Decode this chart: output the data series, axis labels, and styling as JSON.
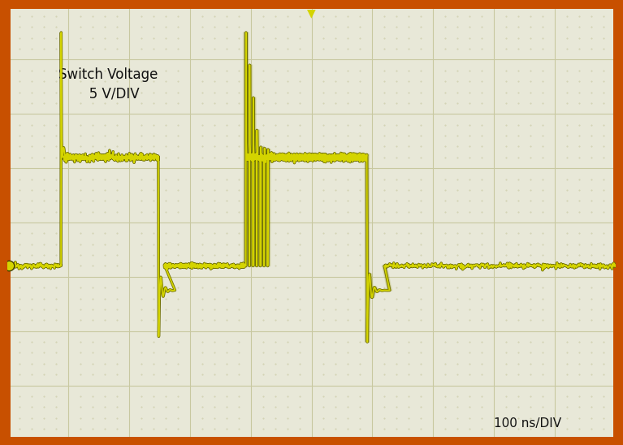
{
  "bg_color": "#e8e8d8",
  "border_color": "#c85000",
  "grid_color": "#c8c8a0",
  "wave_color": "#d4d400",
  "wave_dark": "#707000",
  "text_color": "#111111",
  "label_text": "Switch Voltage\n   5 V/DIV",
  "time_label": "100 ns/DIV",
  "n_hdiv": 10,
  "n_vdiv": 8,
  "xmin": 0,
  "xmax": 1000,
  "ymin": 0,
  "ymax": 8,
  "zero_y": 3.2,
  "high_y": 5.2,
  "low_y": 2.75,
  "spike_up_max": 7.5,
  "spike_down_min": 2.2,
  "noise_amp": 0.055,
  "ringing_amp": 0.28
}
